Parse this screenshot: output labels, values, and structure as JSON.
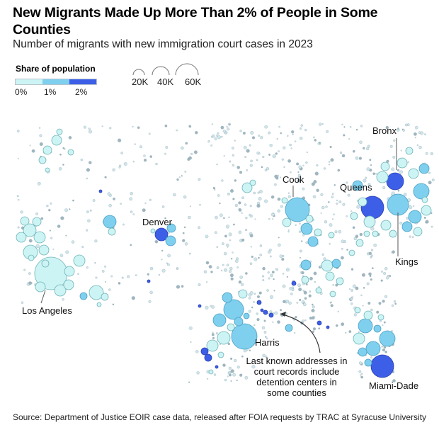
{
  "header": {
    "title": "New Migrants Made Up More Than 2% of People in Some Counties",
    "subtitle": "Number of migrants with new immigration court cases in 2023"
  },
  "legend": {
    "color_title": "Share of population",
    "color_bins": [
      {
        "label": "0%",
        "color": "#cdf4f4"
      },
      {
        "label": "1%",
        "color": "#7fd0ee"
      },
      {
        "label": "2%",
        "color": "#3d5fe8"
      }
    ],
    "size_items": [
      {
        "label": "20K",
        "value": 20000
      },
      {
        "label": "40K",
        "value": 40000
      },
      {
        "label": "60K",
        "value": 60000
      }
    ]
  },
  "chart_data": {
    "type": "bubble-map",
    "title": "New Migrants Made Up More Than 2% of People in Some Counties",
    "subtitle": "Number of migrants with new immigration court cases in 2023",
    "size_metric": "Number of migrants with new immigration court cases in 2023",
    "color_metric": "Share of population",
    "color_scale": [
      "0%",
      "1%",
      "2%"
    ],
    "labeled_counties": [
      {
        "name": "Los Angeles",
        "migrants": 60000,
        "share_bin": "0-1%"
      },
      {
        "name": "Denver",
        "migrants": 20000,
        "share_bin": ">2%"
      },
      {
        "name": "Cook",
        "migrants": 48000,
        "share_bin": "1-2%"
      },
      {
        "name": "Queens",
        "migrants": 45000,
        "share_bin": ">2%"
      },
      {
        "name": "Bronx",
        "migrants": 30000,
        "share_bin": ">2%"
      },
      {
        "name": "Kings",
        "migrants": 50000,
        "share_bin": "1-2%"
      },
      {
        "name": "Harris",
        "migrants": 58000,
        "share_bin": "1-2%"
      },
      {
        "name": "Miami-Dade",
        "migrants": 45000,
        "share_bin": ">2%"
      }
    ],
    "annotation": "Last known addresses in court records include detention centers in some counties"
  },
  "map": {
    "labels": {
      "los_angeles": "Los Angeles",
      "denver": "Denver",
      "cook": "Cook",
      "queens": "Queens",
      "bronx": "Bronx",
      "kings": "Kings",
      "harris": "Harris",
      "miami_dade": "Miami-Dade"
    },
    "annotation_lines": [
      "Last known addresses in",
      "court records include",
      "detention centers in",
      "some counties"
    ]
  },
  "footer": {
    "source": "Source: Department of Justice EOIR case data, released after FOIA requests by TRAC at Syracuse University"
  }
}
